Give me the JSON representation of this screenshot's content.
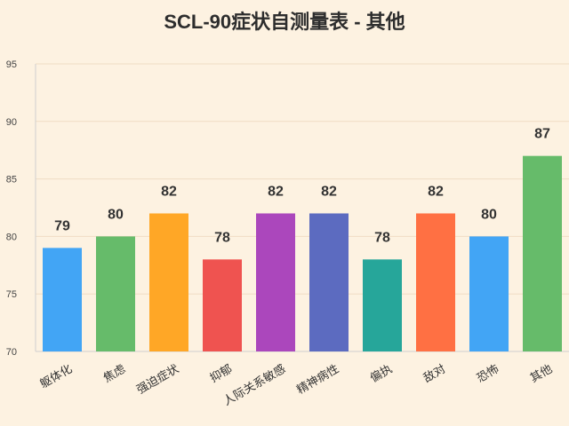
{
  "chart_data": {
    "type": "bar",
    "title": "SCL-90症状自测量表 - 其他",
    "xlabel": "",
    "ylabel": "",
    "ylim": [
      70,
      95
    ],
    "yticks": [
      70,
      75,
      80,
      85,
      90,
      95
    ],
    "grid": true,
    "legend": "none",
    "categories": [
      "躯体化",
      "焦虑",
      "强迫症状",
      "抑郁",
      "人际关系敏感",
      "精神病性",
      "偏执",
      "敌对",
      "恐怖",
      "其他"
    ],
    "values": [
      79,
      80,
      82,
      78,
      82,
      82,
      78,
      82,
      80,
      87
    ],
    "colors": [
      "#42a5f5",
      "#66bb6a",
      "#ffa726",
      "#ef5350",
      "#ab47bc",
      "#5c6bc0",
      "#26a69a",
      "#ff7043",
      "#42a5f5",
      "#66bb6a"
    ]
  }
}
